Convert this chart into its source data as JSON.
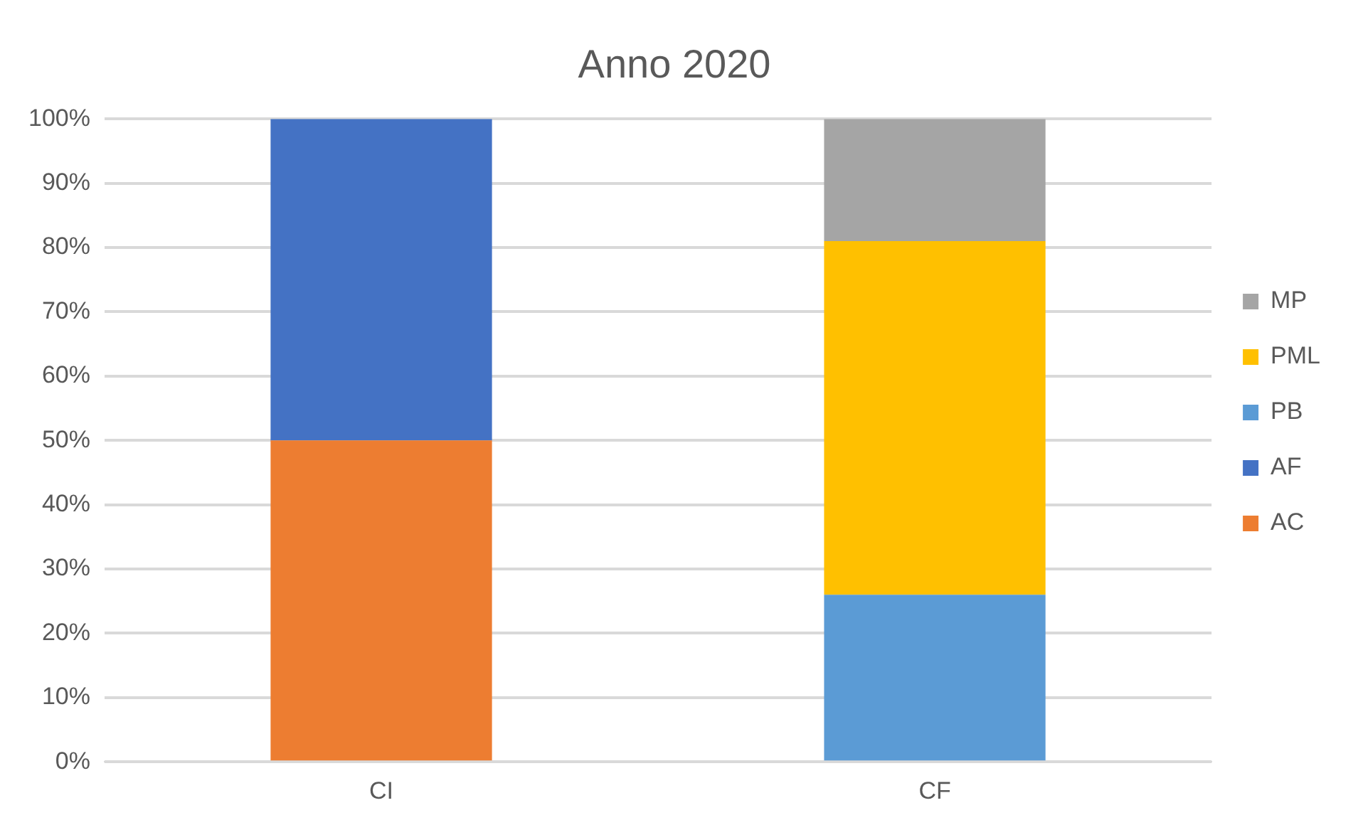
{
  "chart_data": {
    "type": "bar",
    "title": "Anno 2020",
    "stacked": true,
    "categories": [
      "CI",
      "CF"
    ],
    "series": [
      {
        "name": "AC",
        "color": "#ed7d31",
        "values": [
          50,
          null
        ]
      },
      {
        "name": "AF",
        "color": "#4472c4",
        "values": [
          50,
          null
        ]
      },
      {
        "name": "PB",
        "color": "#5b9bd5",
        "values": [
          null,
          26
        ]
      },
      {
        "name": "PML",
        "color": "#ffc000",
        "values": [
          null,
          55
        ]
      },
      {
        "name": "MP",
        "color": "#a5a5a5",
        "values": [
          null,
          19
        ]
      }
    ],
    "ylim": [
      0,
      100
    ],
    "yticks": [
      {
        "value": 0,
        "label": "0%"
      },
      {
        "value": 10,
        "label": "10%"
      },
      {
        "value": 20,
        "label": "20%"
      },
      {
        "value": 30,
        "label": "30%"
      },
      {
        "value": 40,
        "label": "40%"
      },
      {
        "value": 50,
        "label": "50%"
      },
      {
        "value": 60,
        "label": "60%"
      },
      {
        "value": 70,
        "label": "70%"
      },
      {
        "value": 80,
        "label": "80%"
      },
      {
        "value": 90,
        "label": "90%"
      },
      {
        "value": 100,
        "label": "100%"
      }
    ],
    "grid": "y",
    "legend": "right"
  }
}
